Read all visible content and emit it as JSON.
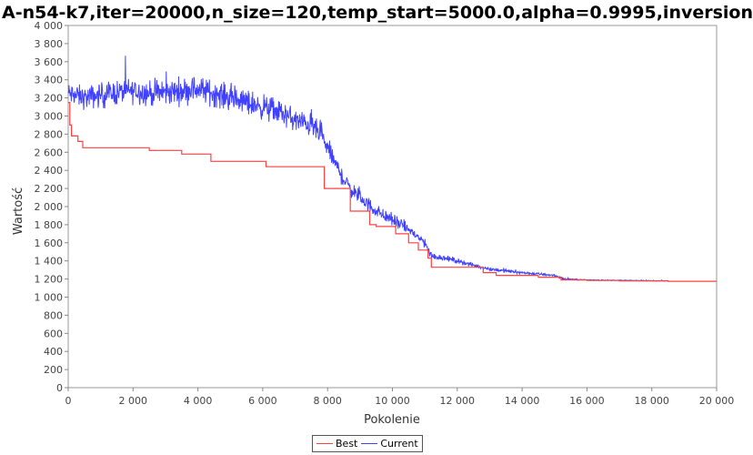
{
  "chart_data": {
    "type": "line",
    "title": "A-n54-k7,iter=20000,n_size=120,temp_start=5000.0,alpha=0.9995,inversion",
    "xlabel": "Pokolenie",
    "ylabel": "Wartość",
    "xlim": [
      0,
      20000
    ],
    "ylim": [
      0,
      4000
    ],
    "x_ticks": [
      "0",
      "2 000",
      "4 000",
      "6 000",
      "8 000",
      "10 000",
      "12 000",
      "14 000",
      "16 000",
      "18 000",
      "20 000"
    ],
    "y_ticks": [
      "0",
      "200",
      "400",
      "600",
      "800",
      "1 000",
      "1 200",
      "1 400",
      "1 600",
      "1 800",
      "2 000",
      "2 200",
      "2 400",
      "2 600",
      "2 800",
      "3 000",
      "3 200",
      "3 400",
      "3 600",
      "3 800",
      "4 000"
    ],
    "grid": false,
    "legend_position": "bottom-center",
    "series": [
      {
        "name": "Best",
        "color": "#ff4040",
        "step": true,
        "x": [
          0,
          50,
          100,
          300,
          450,
          2300,
          2500,
          3300,
          3500,
          4200,
          4400,
          6000,
          6100,
          7800,
          7900,
          8200,
          8500,
          8700,
          9000,
          9300,
          9500,
          10100,
          10300,
          10500,
          10800,
          11100,
          11200,
          11500,
          12300,
          12800,
          13200,
          14500,
          15200,
          16000,
          17000,
          18500,
          20000
        ],
        "values": [
          3150,
          2900,
          2780,
          2720,
          2650,
          2650,
          2620,
          2620,
          2580,
          2580,
          2500,
          2500,
          2440,
          2440,
          2200,
          2200,
          2200,
          1950,
          1950,
          1800,
          1780,
          1700,
          1700,
          1600,
          1520,
          1430,
          1330,
          1330,
          1330,
          1270,
          1240,
          1220,
          1190,
          1185,
          1180,
          1175,
          1175
        ]
      },
      {
        "name": "Current",
        "color": "#4040ff",
        "step": false,
        "x": [
          0,
          500,
          1000,
          1500,
          2000,
          2500,
          3000,
          3500,
          4000,
          4500,
          5000,
          5500,
          6000,
          6500,
          7000,
          7500,
          7800,
          8000,
          8200,
          8500,
          8700,
          9000,
          9500,
          10000,
          10500,
          11000,
          11200,
          11500,
          12000,
          12500,
          13000,
          14000,
          15000,
          15300,
          16000,
          17000,
          18000,
          18500
        ],
        "values": [
          3250,
          3200,
          3230,
          3260,
          3280,
          3250,
          3260,
          3280,
          3300,
          3250,
          3200,
          3150,
          3100,
          3050,
          2950,
          2900,
          2780,
          2650,
          2500,
          2300,
          2200,
          2100,
          1950,
          1850,
          1750,
          1600,
          1450,
          1440,
          1400,
          1350,
          1310,
          1270,
          1240,
          1200,
          1190,
          1185,
          1180,
          1180
        ],
        "noise": [
          180,
          180,
          200,
          200,
          200,
          200,
          210,
          210,
          210,
          210,
          200,
          200,
          200,
          200,
          190,
          180,
          170,
          160,
          150,
          140,
          130,
          120,
          110,
          100,
          90,
          80,
          60,
          50,
          40,
          35,
          30,
          25,
          20,
          10,
          8,
          6,
          5,
          5
        ]
      }
    ]
  }
}
